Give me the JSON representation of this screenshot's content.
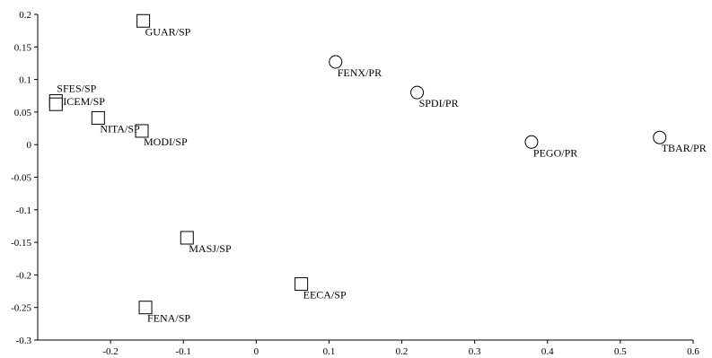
{
  "chart_data": {
    "type": "scatter",
    "title": "",
    "xlabel": "",
    "ylabel": "",
    "xlim": [
      -0.3,
      0.6
    ],
    "ylim": [
      -0.3,
      0.2
    ],
    "x_ticks": [
      "-0.2",
      "-0.1",
      "0",
      "0.1",
      "0.2",
      "0.3",
      "0.4",
      "0.5",
      "0.6"
    ],
    "x_tick_values": [
      -0.2,
      -0.1,
      0,
      0.1,
      0.2,
      0.3,
      0.4,
      0.5,
      0.6
    ],
    "y_ticks": [
      "0.2",
      "0.15",
      "0.1",
      "0.05",
      "0",
      "-0.05",
      "-0.1",
      "-0.15",
      "-0.2",
      "-0.25",
      "-0.3"
    ],
    "y_tick_values": [
      0.2,
      0.15,
      0.1,
      0.05,
      0,
      -0.05,
      -0.1,
      -0.15,
      -0.2,
      -0.25,
      -0.3
    ],
    "grid": false,
    "series": [
      {
        "marker": "square",
        "points": [
          {
            "label": "GUAR/SP",
            "x": -0.155,
            "y": 0.19
          },
          {
            "label": "SFES/SP",
            "x": -0.275,
            "y": 0.067
          },
          {
            "label": "ICEM/SP",
            "x": -0.275,
            "y": 0.062
          },
          {
            "label": "NITA/SP",
            "x": -0.217,
            "y": 0.041
          },
          {
            "label": "MODI/SP",
            "x": -0.157,
            "y": 0.021
          },
          {
            "label": "MASJ/SP",
            "x": -0.095,
            "y": -0.143
          },
          {
            "label": "EECA/SP",
            "x": 0.062,
            "y": -0.214
          },
          {
            "label": "FENA/SP",
            "x": -0.152,
            "y": -0.25
          }
        ]
      },
      {
        "marker": "circle",
        "points": [
          {
            "label": "FENX/PR",
            "x": 0.109,
            "y": 0.127
          },
          {
            "label": "SPDI/PR",
            "x": 0.221,
            "y": 0.08
          },
          {
            "label": "PEGO/PR",
            "x": 0.378,
            "y": 0.004
          },
          {
            "label": "TBAR/PR",
            "x": 0.554,
            "y": 0.011
          }
        ]
      }
    ]
  }
}
